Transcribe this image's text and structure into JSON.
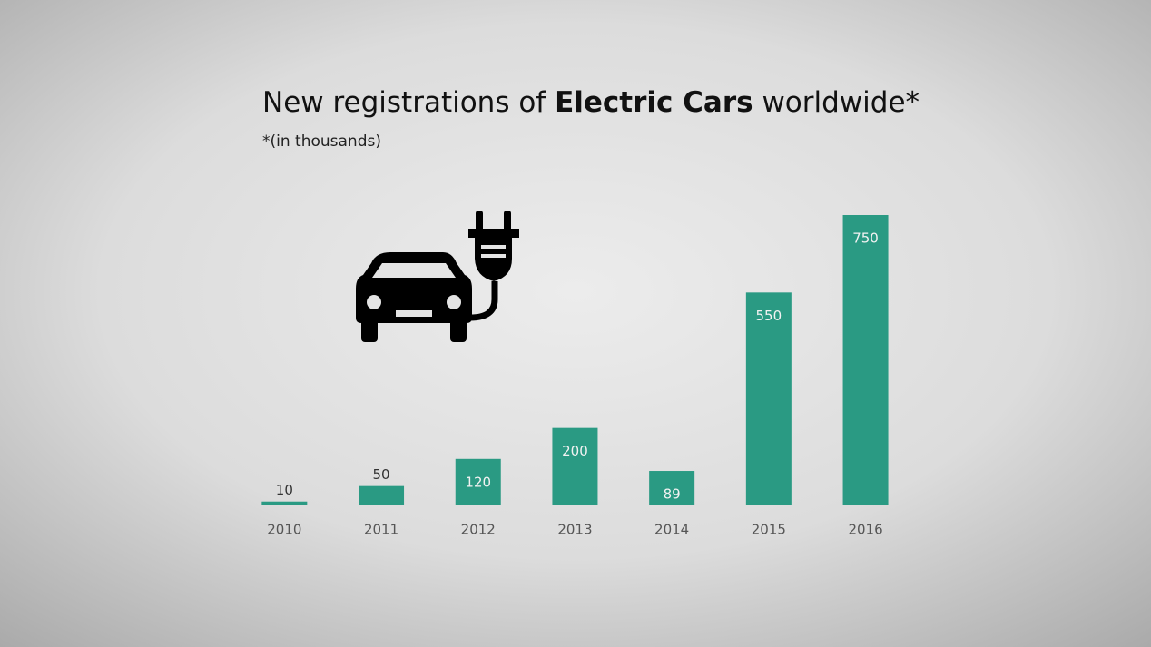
{
  "chart_data": {
    "type": "bar",
    "title": [
      "New registrations of ",
      "Electric Cars",
      " worldwide*"
    ],
    "subtitle": "*(in thousands)",
    "categories": [
      "2010",
      "2011",
      "2012",
      "2013",
      "2014",
      "2015",
      "2016"
    ],
    "values": [
      10,
      50,
      120,
      200,
      89,
      550,
      750
    ],
    "color": "#2a9a83"
  }
}
